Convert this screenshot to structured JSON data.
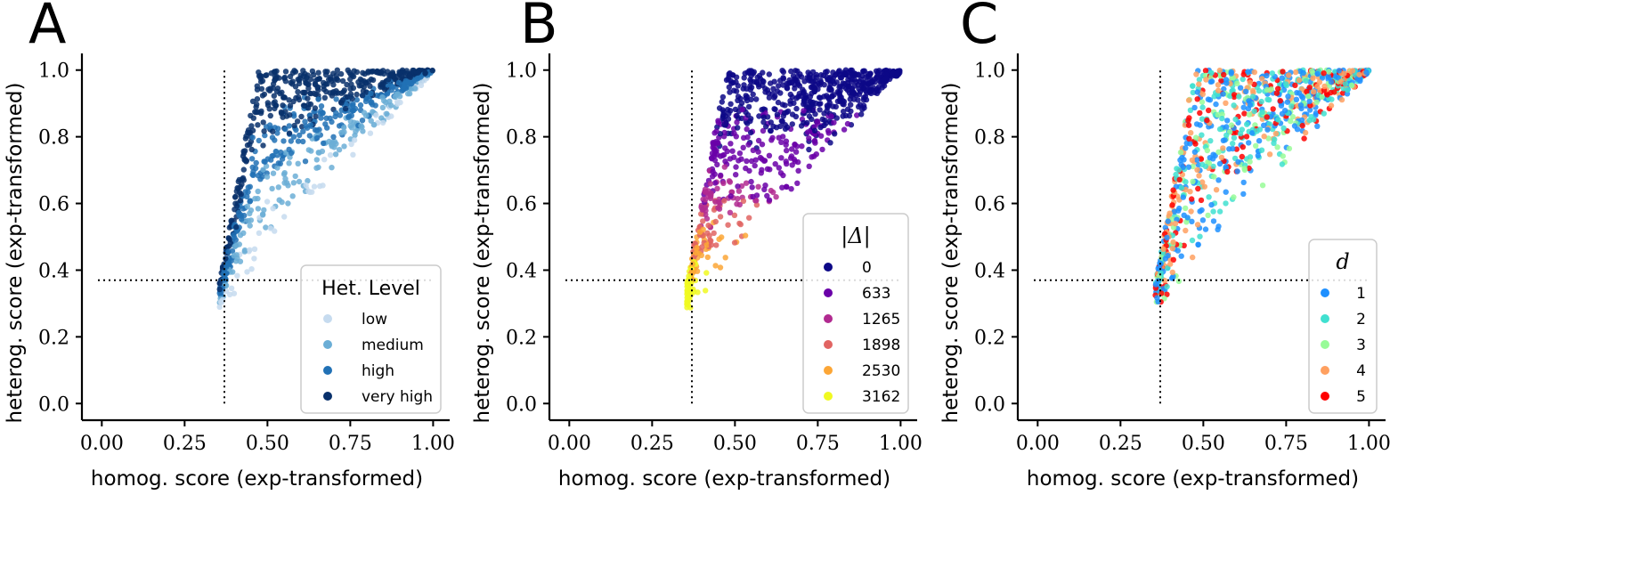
{
  "chart_data": [
    {
      "type": "scatter",
      "panel_label": "A",
      "xlabel": "homog. score (exp-transformed)",
      "ylabel": "heterog. score (exp-transformed)",
      "xlim": [
        -0.06,
        1.05
      ],
      "ylim": [
        -0.05,
        1.05
      ],
      "xticks": [
        "0.00",
        "0.25",
        "0.50",
        "0.75",
        "1.00"
      ],
      "xtick_values": [
        0.0,
        0.25,
        0.5,
        0.75,
        1.0
      ],
      "yticks": [
        "0.0",
        "0.2",
        "0.4",
        "0.6",
        "0.8",
        "1.0"
      ],
      "ytick_values": [
        0.0,
        0.2,
        0.4,
        0.6,
        0.8,
        1.0
      ],
      "threshold_x": 0.37,
      "threshold_y": 0.37,
      "legend_title": "Het. Level",
      "legend_title_math": false,
      "legend_position": "lower-right",
      "series": [
        {
          "name": "low",
          "color": "#c6dbef"
        },
        {
          "name": "medium",
          "color": "#6baed6"
        },
        {
          "name": "high",
          "color": "#2171b5"
        },
        {
          "name": "very high",
          "color": "#08306b"
        }
      ]
    },
    {
      "type": "scatter",
      "panel_label": "B",
      "xlabel": "homog. score (exp-transformed)",
      "ylabel": "heterog. score (exp-transformed)",
      "xlim": [
        -0.06,
        1.05
      ],
      "ylim": [
        -0.05,
        1.05
      ],
      "xticks": [
        "0.00",
        "0.25",
        "0.50",
        "0.75",
        "1.00"
      ],
      "xtick_values": [
        0.0,
        0.25,
        0.5,
        0.75,
        1.0
      ],
      "yticks": [
        "0.0",
        "0.2",
        "0.4",
        "0.6",
        "0.8",
        "1.0"
      ],
      "ytick_values": [
        0.0,
        0.2,
        0.4,
        0.6,
        0.8,
        1.0
      ],
      "threshold_x": 0.37,
      "threshold_y": 0.37,
      "legend_title": "|Δ|",
      "legend_title_math": true,
      "legend_position": "lower-right",
      "series": [
        {
          "name": "0",
          "color": "#0d0887"
        },
        {
          "name": "633",
          "color": "#6a00a8"
        },
        {
          "name": "1265",
          "color": "#b12a90"
        },
        {
          "name": "1898",
          "color": "#e16462"
        },
        {
          "name": "2530",
          "color": "#fca636"
        },
        {
          "name": "3162",
          "color": "#f0f921"
        }
      ]
    },
    {
      "type": "scatter",
      "panel_label": "C",
      "xlabel": "homog. score (exp-transformed)",
      "ylabel": "heterog. score (exp-transformed)",
      "xlim": [
        -0.06,
        1.05
      ],
      "ylim": [
        -0.05,
        1.05
      ],
      "xticks": [
        "0.00",
        "0.25",
        "0.50",
        "0.75",
        "1.00"
      ],
      "xtick_values": [
        0.0,
        0.25,
        0.5,
        0.75,
        1.0
      ],
      "yticks": [
        "0.0",
        "0.2",
        "0.4",
        "0.6",
        "0.8",
        "1.0"
      ],
      "ytick_values": [
        0.0,
        0.2,
        0.4,
        0.6,
        0.8,
        1.0
      ],
      "threshold_x": 0.37,
      "threshold_y": 0.37,
      "legend_title": "d",
      "legend_title_math": true,
      "legend_position": "lower-right",
      "series": [
        {
          "name": "1",
          "color": "#1e90ff"
        },
        {
          "name": "2",
          "color": "#40e0d0"
        },
        {
          "name": "3",
          "color": "#98fb98"
        },
        {
          "name": "4",
          "color": "#ffa060"
        },
        {
          "name": "5",
          "color": "#ff0000"
        }
      ]
    }
  ]
}
